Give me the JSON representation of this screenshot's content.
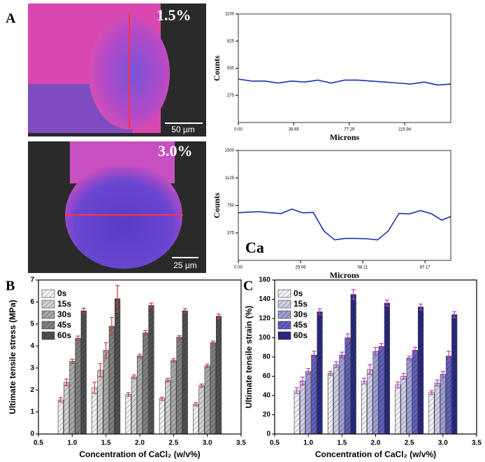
{
  "panel_labels": [
    "A",
    "B",
    "C"
  ],
  "images": [
    {
      "label": "1.5%",
      "scale_bar": "50 µm"
    },
    {
      "label": "3.0%",
      "scale_bar": "25 µm"
    }
  ],
  "chart_data": [
    {
      "type": "line",
      "x_label": "Microns",
      "y_label": "Counts",
      "color": "#1c2fb0",
      "x": [
        0,
        9.25,
        18.5,
        27.75,
        37,
        46.25,
        55.5,
        64.75,
        74,
        83.25,
        92.5,
        101.75,
        111,
        120.25,
        129.5,
        138.75,
        148
      ],
      "values": [
        440,
        420,
        420,
        400,
        420,
        410,
        430,
        400,
        430,
        430,
        420,
        410,
        400,
        390,
        410,
        380,
        390
      ],
      "xlim": [
        0,
        148
      ],
      "xticks": [
        {
          "value": 0,
          "label": "0.00"
        },
        38.65,
        77.29,
        115.94
      ],
      "ylim": [
        0,
        1100
      ],
      "yticks": [
        275,
        550,
        825,
        1100
      ]
    },
    {
      "type": "line",
      "x_label": "Microns",
      "y_label": "Counts",
      "color": "#1c2fb0",
      "annotation": "Ca",
      "x": [
        0,
        5,
        10,
        15,
        20,
        25,
        30,
        35,
        40,
        45,
        50,
        55,
        60,
        65,
        70,
        75,
        80,
        85,
        90,
        95,
        99.2
      ],
      "values": [
        650,
        660,
        665,
        650,
        640,
        700,
        650,
        655,
        400,
        280,
        300,
        300,
        295,
        280,
        400,
        640,
        635,
        680,
        640,
        550,
        600
      ],
      "xlim": [
        0,
        99.2
      ],
      "xticks": [
        {
          "value": 0,
          "label": "0.00"
        },
        29.06,
        58.11,
        87.17
      ],
      "ylim": [
        0,
        1500
      ],
      "yticks": [
        375,
        750,
        1125,
        1500
      ]
    },
    {
      "type": "bar",
      "x_label": "Concentration of CaCl₂ (w/v%)",
      "y_label": "Ultimate tensile stress (MPa)",
      "error_color": "#d03a3a",
      "x": [
        1,
        1.5,
        2,
        2.5,
        3
      ],
      "series": [
        {
          "name": "0s",
          "color": "#f4f4f4",
          "values": [
            1.55,
            2.1,
            1.8,
            1.6,
            1.35
          ],
          "errors": [
            0.1,
            0.25,
            0.08,
            0.07,
            0.07
          ]
        },
        {
          "name": "15s",
          "color": "#d2d2d2",
          "values": [
            2.35,
            2.9,
            2.6,
            2.45,
            2.2
          ],
          "errors": [
            0.15,
            0.3,
            0.08,
            0.08,
            0.07
          ]
        },
        {
          "name": "30s",
          "color": "#a9a9a9",
          "values": [
            3.3,
            3.8,
            3.55,
            3.35,
            3.1
          ],
          "errors": [
            0.1,
            0.35,
            0.08,
            0.08,
            0.08
          ]
        },
        {
          "name": "45s",
          "color": "#808080",
          "values": [
            4.35,
            4.9,
            4.6,
            4.4,
            4.15
          ],
          "errors": [
            0.1,
            0.4,
            0.1,
            0.07,
            0.07
          ]
        },
        {
          "name": "60s",
          "color": "#505050",
          "values": [
            5.6,
            6.15,
            5.85,
            5.6,
            5.35
          ],
          "errors": [
            0.12,
            0.6,
            0.1,
            0.1,
            0.1
          ]
        }
      ],
      "xlim": [
        0.5,
        3.5
      ],
      "xticks": [
        0.5,
        {
          "value": 1,
          "label": "1.0"
        },
        1.5,
        {
          "value": 2,
          "label": "2.0"
        },
        2.5,
        {
          "value": 3,
          "label": "3.0"
        },
        3.5
      ],
      "ylim": [
        0,
        7
      ],
      "yticks": [
        0,
        1,
        2,
        3,
        4,
        5,
        6,
        7
      ]
    },
    {
      "type": "bar",
      "x_label": "Concentration of CaCl₂ (w/v%)",
      "y_label": "Ultimate tensile strain (%)",
      "error_color": "#c03cc0",
      "x": [
        1,
        1.5,
        2,
        2.5,
        3
      ],
      "series": [
        {
          "name": "0s",
          "color": "#f2f2f8",
          "values": [
            45,
            63,
            55,
            51,
            43
          ],
          "errors": [
            3,
            2,
            3,
            3,
            2
          ]
        },
        {
          "name": "15s",
          "color": "#cfcfea",
          "values": [
            55,
            72,
            67,
            60,
            53
          ],
          "errors": [
            4,
            3,
            5,
            3,
            3
          ]
        },
        {
          "name": "30s",
          "color": "#9f9fd8",
          "values": [
            65,
            82,
            86,
            79,
            62
          ],
          "errors": [
            3,
            3,
            4,
            2,
            3
          ]
        },
        {
          "name": "45s",
          "color": "#5f5fc0",
          "values": [
            82,
            100,
            91,
            87,
            81
          ],
          "errors": [
            4,
            4,
            3,
            3,
            5
          ]
        },
        {
          "name": "60s",
          "color": "#2a2a80",
          "values": [
            127,
            145,
            136,
            132,
            124
          ],
          "errors": [
            3,
            5,
            3,
            3,
            3
          ]
        }
      ],
      "xlim": [
        0.5,
        3.5
      ],
      "xticks": [
        0.5,
        {
          "value": 1,
          "label": "1.0"
        },
        1.5,
        {
          "value": 2,
          "label": "2.0"
        },
        2.5,
        {
          "value": 3,
          "label": "3.0"
        },
        3.5
      ],
      "ylim": [
        0,
        160
      ],
      "yticks": [
        0,
        20,
        40,
        60,
        80,
        100,
        120,
        140,
        160
      ]
    }
  ]
}
